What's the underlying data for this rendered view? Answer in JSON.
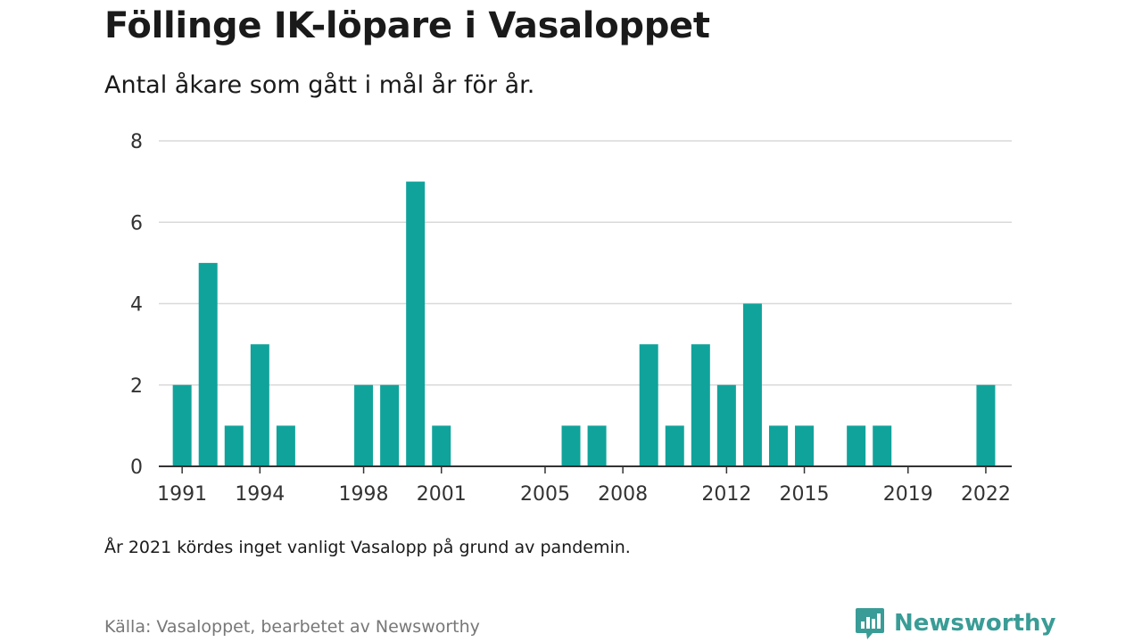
{
  "header": {
    "title": "Föllinge IK-löpare i Vasaloppet",
    "subtitle": "Antal åkare som gått i mål år för år."
  },
  "footer": {
    "note": "År 2021 kördes inget vanligt Vasalopp på grund av pandemin.",
    "source": "Källa: Vasaloppet, bearbetet av Newsworthy",
    "brand": "Newsworthy",
    "brand_icon": "newsworthy-logo-icon"
  },
  "colors": {
    "bar": "#10a39b",
    "brand": "#3a9c96",
    "grid": "#d9d9d9",
    "axis": "#333333"
  },
  "chart_data": {
    "type": "bar",
    "title": "Föllinge IK-löpare i Vasaloppet",
    "subtitle": "Antal åkare som gått i mål år för år.",
    "x": [
      1991,
      1992,
      1993,
      1994,
      1995,
      1998,
      1999,
      2000,
      2001,
      2006,
      2007,
      2009,
      2010,
      2011,
      2012,
      2013,
      2014,
      2015,
      2017,
      2018,
      2022
    ],
    "values": [
      2,
      5,
      1,
      3,
      1,
      2,
      2,
      7,
      1,
      1,
      1,
      3,
      1,
      3,
      2,
      4,
      1,
      1,
      1,
      1,
      2
    ],
    "xlim": [
      1990,
      2024
    ],
    "ylim": [
      0,
      8
    ],
    "yticks": [
      0,
      2,
      4,
      6,
      8
    ],
    "xticks": [
      1991,
      1994,
      1998,
      2001,
      2005,
      2008,
      2012,
      2015,
      2019,
      2022
    ],
    "grid": true,
    "legend": "none"
  }
}
